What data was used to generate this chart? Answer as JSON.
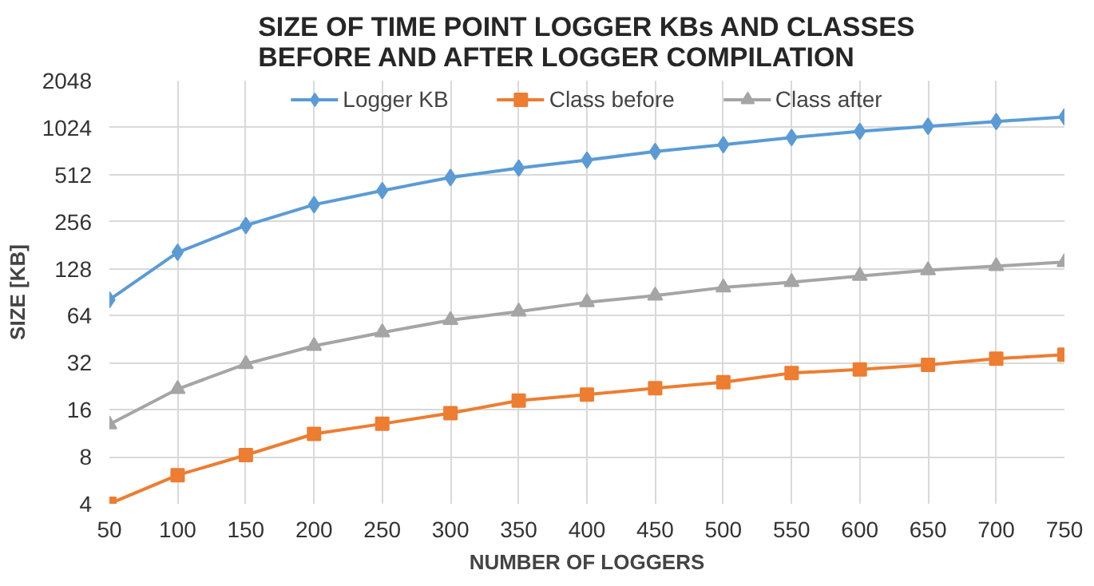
{
  "chart_data": {
    "type": "line",
    "title": "SIZE OF TIME POINT LOGGER KBs AND CLASSES\nBEFORE AND AFTER LOGGER COMPILATION",
    "xlabel": "NUMBER OF LOGGERS",
    "ylabel": "SIZE [KB]",
    "x": [
      50,
      100,
      150,
      200,
      250,
      300,
      350,
      400,
      450,
      500,
      550,
      600,
      650,
      700,
      750
    ],
    "series": [
      {
        "name": "Logger KB",
        "color": "#5b9bd5",
        "marker": "diamond",
        "values": [
          81,
          163,
          242,
          329,
          405,
          491,
          564,
          635,
          720,
          797,
          885,
          970,
          1045,
          1120,
          1200
        ]
      },
      {
        "name": "Class before",
        "color": "#ed7d31",
        "marker": "square",
        "values": [
          4,
          6.1,
          8.2,
          11.2,
          13,
          15.2,
          18.3,
          20,
          22,
          24,
          27.5,
          29,
          31,
          34,
          36
        ]
      },
      {
        "name": "Class after",
        "color": "#a5a5a5",
        "marker": "triangle",
        "values": [
          12.9,
          21.7,
          31.4,
          41,
          50,
          60,
          68,
          78,
          86,
          97,
          105,
          115,
          125,
          133,
          141
        ]
      }
    ],
    "log": "y",
    "xlim": [
      50,
      750
    ],
    "ylim": [
      4,
      2048
    ],
    "xticks": [
      50,
      100,
      150,
      200,
      250,
      300,
      350,
      400,
      450,
      500,
      550,
      600,
      650,
      700,
      750
    ],
    "yticks": [
      4,
      8,
      16,
      32,
      64,
      128,
      256,
      512,
      1024,
      2048
    ],
    "grid": true,
    "legend": "top",
    "line_style": "solid"
  }
}
